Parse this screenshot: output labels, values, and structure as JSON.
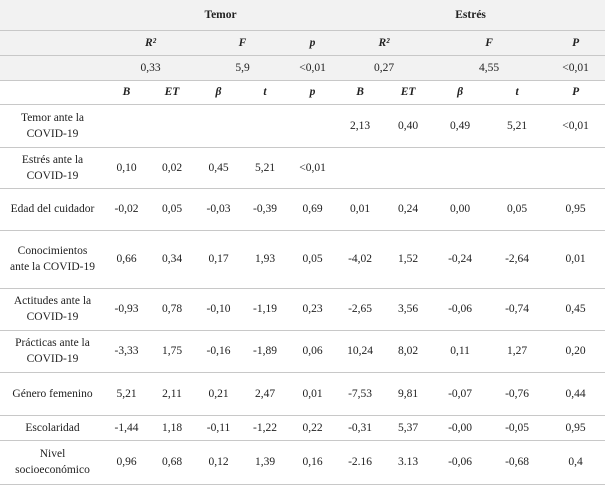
{
  "table": {
    "groups": [
      "Temor",
      "Estrés"
    ],
    "stats_header": [
      "R²",
      "F",
      "p",
      "R²",
      "F",
      "P"
    ],
    "stats_values": [
      "0,33",
      "5,9",
      "<0,01",
      "0,27",
      "4,55",
      "<0,01"
    ],
    "columns": [
      "B",
      "ET",
      "β",
      "t",
      "p",
      "B",
      "ET",
      "β",
      "t",
      "P"
    ],
    "rows": [
      {
        "label": "Temor ante la COVID-19",
        "cells": [
          null,
          null,
          null,
          null,
          null,
          "2,13",
          "0,40",
          "0,49",
          "5,21",
          "<0,01"
        ]
      },
      {
        "label": "Estrés ante la COVID-19",
        "cells": [
          "0,10",
          "0,02",
          "0,45",
          "5,21",
          "<0,01",
          null,
          null,
          null,
          null,
          null
        ]
      },
      {
        "label": "Edad del cuidador",
        "cells": [
          "-0,02",
          "0,05",
          "-0,03",
          "-0,39",
          "0,69",
          "0,01",
          "0,24",
          "0,00",
          "0,05",
          "0,95"
        ]
      },
      {
        "label": "Conocimientos ante la COVID-19",
        "cells": [
          "0,66",
          "0,34",
          "0,17",
          "1,93",
          "0,05",
          "-4,02",
          "1,52",
          "-0,24",
          "-2,64",
          "0,01"
        ]
      },
      {
        "label": "Actitudes ante la COVID-19",
        "cells": [
          "-0,93",
          "0,78",
          "-0,10",
          "-1,19",
          "0,23",
          "-2,65",
          "3,56",
          "-0,06",
          "-0,74",
          "0,45"
        ]
      },
      {
        "label": "Prácticas ante la COVID-19",
        "cells": [
          "-3,33",
          "1,75",
          "-0,16",
          "-1,89",
          "0,06",
          "10,24",
          "8,02",
          "0,11",
          "1,27",
          "0,20"
        ]
      },
      {
        "label": "Género femenino",
        "cells": [
          "5,21",
          "2,11",
          "0,21",
          "2,47",
          "0,01",
          "-7,53",
          "9,81",
          "-0,07",
          "-0,76",
          "0,44"
        ]
      },
      {
        "label": "Escolaridad",
        "cells": [
          "-1,44",
          "1,18",
          "-0,11",
          "-1,22",
          "0,22",
          "-0,31",
          "5,37",
          "-0,00",
          "-0,05",
          "0,95"
        ]
      },
      {
        "label": "Nivel socioeconómico",
        "cells": [
          "0,96",
          "0,68",
          "0,12",
          "1,39",
          "0,16",
          "-2.16",
          "3.13",
          "-0,06",
          "-0,68",
          "0,4"
        ]
      }
    ]
  }
}
